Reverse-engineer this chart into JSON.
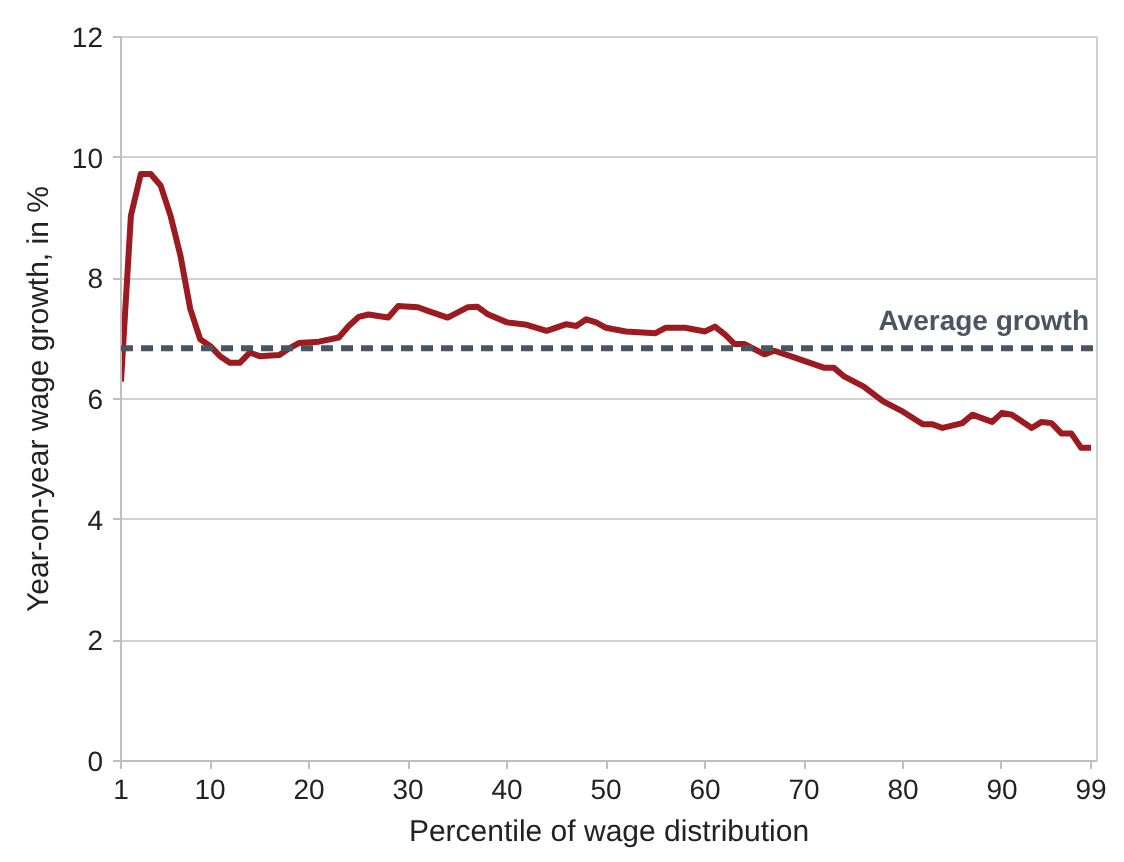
{
  "chart_data": {
    "type": "line",
    "xlabel": "Percentile of wage distribution",
    "ylabel": "Year-on-year wage growth, in %",
    "xlim": [
      1,
      99.6
    ],
    "xticks": [
      1,
      10,
      20,
      30,
      40,
      50,
      60,
      70,
      80,
      90,
      99
    ],
    "ylim": [
      0,
      12
    ],
    "yticks": [
      0,
      2,
      4,
      6,
      8,
      10,
      12
    ],
    "grid": "y",
    "line_style": "solid",
    "series": [
      {
        "color": "#9b1b20",
        "x": [
          1,
          2,
          3,
          4,
          5,
          6,
          7,
          8,
          9,
          10,
          11,
          12,
          13,
          14,
          15,
          17,
          18,
          19,
          21,
          23,
          24,
          25,
          26,
          28,
          29,
          31,
          32,
          34,
          36,
          37,
          38,
          40,
          42,
          44,
          46,
          47,
          48,
          49,
          50,
          52,
          55,
          56,
          58,
          60,
          61,
          62,
          63,
          64,
          66,
          67,
          69,
          72,
          73,
          74,
          76,
          78,
          80,
          82,
          83,
          84,
          86,
          87,
          89,
          90,
          91,
          93,
          94,
          95,
          96,
          97,
          98,
          99
        ],
        "values": [
          6.29,
          9.04,
          9.73,
          9.73,
          9.54,
          9.04,
          8.38,
          7.49,
          6.99,
          6.88,
          6.71,
          6.6,
          6.6,
          6.77,
          6.71,
          6.73,
          6.84,
          6.93,
          6.95,
          7.02,
          7.21,
          7.36,
          7.4,
          7.35,
          7.54,
          7.52,
          7.46,
          7.35,
          7.52,
          7.53,
          7.41,
          7.27,
          7.23,
          7.13,
          7.24,
          7.21,
          7.32,
          7.27,
          7.18,
          7.12,
          7.09,
          7.18,
          7.18,
          7.12,
          7.2,
          7.07,
          6.91,
          6.91,
          6.74,
          6.8,
          6.69,
          6.52,
          6.52,
          6.38,
          6.21,
          5.96,
          5.79,
          5.58,
          5.58,
          5.52,
          5.6,
          5.74,
          5.62,
          5.77,
          5.74,
          5.52,
          5.62,
          5.6,
          5.43,
          5.43,
          5.19,
          5.19
        ]
      }
    ],
    "ref_lines": [
      {
        "axis": "y",
        "value": 6.84,
        "label": "Average growth",
        "color": "#4a5561",
        "line_style": "dashed"
      }
    ]
  }
}
